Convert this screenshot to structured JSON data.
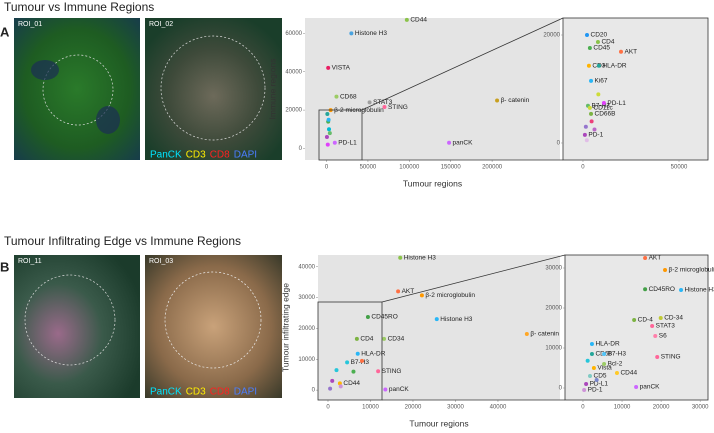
{
  "panels": [
    {
      "letter": "A",
      "title": "Tumour vs Immune Regions",
      "images": [
        {
          "label": "ROI_01"
        },
        {
          "label": "ROI_02",
          "channels": [
            {
              "name": "PanCK",
              "color": "#00e5ff"
            },
            {
              "name": "CD3",
              "color": "#ffee00"
            },
            {
              "name": "CD8",
              "color": "#ff2020"
            },
            {
              "name": "DAPI",
              "color": "#4a7dff"
            }
          ]
        }
      ]
    },
    {
      "letter": "B",
      "title": "Tumour Infiltrating Edge vs Immune Regions",
      "images": [
        {
          "label": "ROI_11"
        },
        {
          "label": "ROI_03",
          "channels": [
            {
              "name": "PanCK",
              "color": "#00e5ff"
            },
            {
              "name": "CD3",
              "color": "#ffee00"
            },
            {
              "name": "CD8",
              "color": "#ff2020"
            },
            {
              "name": "DAPI",
              "color": "#4a7dff"
            }
          ]
        }
      ]
    }
  ],
  "chart_data": [
    {
      "type": "scatter",
      "xlabel": "Tumour regions",
      "ylabel": "Immune regions",
      "xlim": [
        -26000,
        282000
      ],
      "ylim": [
        -6000,
        68000
      ],
      "xticks": [
        0,
        50000,
        100000,
        150000,
        200000
      ],
      "yticks": [
        0,
        20000,
        40000,
        60000
      ],
      "x": [
        30000,
        97000,
        2000,
        12000,
        5000,
        52000,
        70000,
        206000,
        148000,
        10000,
        1000,
        2000,
        3000,
        500,
        1500,
        4000,
        2500
      ],
      "values": [
        60000,
        67000,
        42000,
        27000,
        20000,
        24000,
        21600,
        25000,
        3000,
        3000,
        18000,
        14000,
        10000,
        6000,
        2000,
        8000,
        15000
      ],
      "point_labels": [
        "Histone H3",
        "CD44",
        "VISTA",
        "CD68",
        "β-2 microglobulin",
        "STAT3",
        "STING",
        "β- catenin",
        "panCK",
        "PD-L1",
        null,
        null,
        null,
        null,
        null,
        null,
        null
      ],
      "colors": [
        "#4aa3df",
        "#8bc34a",
        "#e91e63",
        "#9ccc65",
        "#ff9800",
        "#a0a0a0",
        "#ff6699",
        "#c8a020",
        "#cc66ff",
        "#cc66ff",
        "#26a69a",
        "#4caf50",
        "#00bcd4",
        "#ab47bc",
        "#e040fb",
        "#66bb6a",
        "#29b6f6"
      ]
    },
    {
      "type": "scatter",
      "xlim": [
        -10400,
        65100
      ],
      "ylim": [
        -3150,
        23150
      ],
      "xticks": [
        0,
        50000
      ],
      "yticks": [
        0,
        20000
      ],
      "x": [
        2100,
        7800,
        3600,
        19800,
        3100,
        8300,
        4200,
        2600,
        10900,
        3600,
        4200,
        1000,
        4500,
        1500,
        6000,
        8000,
        2000
      ],
      "values": [
        20000,
        18700,
        17600,
        16900,
        14300,
        14300,
        11500,
        6900,
        7400,
        6500,
        5400,
        1500,
        4000,
        3000,
        2500,
        9000,
        500
      ],
      "point_labels": [
        "CD20",
        "CD4",
        "CD45",
        "AKT",
        "CD3",
        "HLA-DR",
        "Ki67",
        "B7-H3",
        "PD-L1",
        "CD11c",
        "CD66B",
        "PD-1",
        null,
        null,
        null,
        null,
        null
      ],
      "colors": [
        "#2196f3",
        "#8bc34a",
        "#4caf50",
        "#ff7043",
        "#ffb300",
        "#26a69a",
        "#29b6f6",
        "#66bb6a",
        "#e040fb",
        "#cddc39",
        "#7cb342",
        "#ab47bc",
        "#ec407a",
        "#9575cd",
        "#ba68c8",
        "#cddc39",
        "#e1bee7"
      ]
    },
    {
      "type": "scatter",
      "xlabel": "Tumour regions",
      "ylabel": "Tumour infiltrating edge",
      "xlim": [
        -2350,
        54600
      ],
      "ylim": [
        -3200,
        43800
      ],
      "xticks": [
        0,
        10000,
        20000,
        30000,
        40000
      ],
      "yticks": [
        0,
        10000,
        20000,
        30000,
        40000
      ],
      "x": [
        17000,
        16500,
        22100,
        25600,
        46800,
        9400,
        6800,
        13200,
        7000,
        4500,
        11800,
        2800,
        13500,
        1000,
        3000,
        6000,
        2000,
        8000,
        500
      ],
      "values": [
        42900,
        32000,
        30700,
        23000,
        18200,
        23700,
        16600,
        16600,
        11800,
        9000,
        6100,
        2200,
        200,
        3000,
        1200,
        6000,
        6500,
        9500,
        500
      ],
      "point_labels": [
        "Histone H3",
        "AKT",
        "β-2 microglobulin",
        "Histone H3",
        "β- catenin",
        "CD45RO",
        "CD4",
        "CD34",
        "HLA-DR",
        "B7-H3",
        "STING",
        "CD44",
        "panCK",
        null,
        null,
        null,
        null,
        null,
        null
      ],
      "colors": [
        "#8bc34a",
        "#ff7043",
        "#ff9800",
        "#29b6f6",
        "#ffa726",
        "#43a047",
        "#7cb342",
        "#9ccc65",
        "#29b6f6",
        "#26c6da",
        "#ff6699",
        "#ffb300",
        "#cc66ff",
        "#ab47bc",
        "#ce93d8",
        "#4caf50",
        "#26c6da",
        "#ff7043",
        "#9575cd"
      ]
    },
    {
      "type": "scatter",
      "xlim": [
        -4600,
        32000
      ],
      "ylim": [
        -3000,
        33250
      ],
      "xticks": [
        0,
        10000,
        20000,
        30000
      ],
      "yticks": [
        0,
        10000,
        20000,
        30000
      ],
      "x": [
        15900,
        21000,
        25100,
        15900,
        19900,
        13100,
        17700,
        18500,
        2300,
        2300,
        5400,
        5400,
        19000,
        2800,
        1800,
        8700,
        800,
        13600,
        300,
        3500,
        1200
      ],
      "values": [
        32500,
        29500,
        24500,
        24700,
        17500,
        17000,
        15500,
        13000,
        11000,
        8500,
        8500,
        6000,
        7750,
        5000,
        3000,
        3750,
        1000,
        250,
        -500,
        2000,
        6800
      ],
      "point_labels": [
        "AKT",
        "β-2 microglobulin",
        "Histone H3",
        "CD45RO",
        "CD-34",
        "CD-4",
        "STAT3",
        "S6",
        "HLA-DR",
        "CD68",
        "B7-H3",
        "Bcl-2",
        "STING",
        "Vista",
        "CD5",
        "CD44",
        "PD-L1",
        "panCK",
        "PD-1",
        null,
        null
      ],
      "colors": [
        "#ff7043",
        "#ff9800",
        "#29b6f6",
        "#43a047",
        "#c0ca33",
        "#7cb342",
        "#ff6699",
        "#ff80ab",
        "#29b6f6",
        "#26a69a",
        "#4fc3f7",
        "#9ccc65",
        "#ff6699",
        "#ffb300",
        "#80cbc4",
        "#ffca28",
        "#ab47bc",
        "#cc66ff",
        "#ce93d8",
        "#7986cb",
        "#26c6da"
      ]
    }
  ]
}
